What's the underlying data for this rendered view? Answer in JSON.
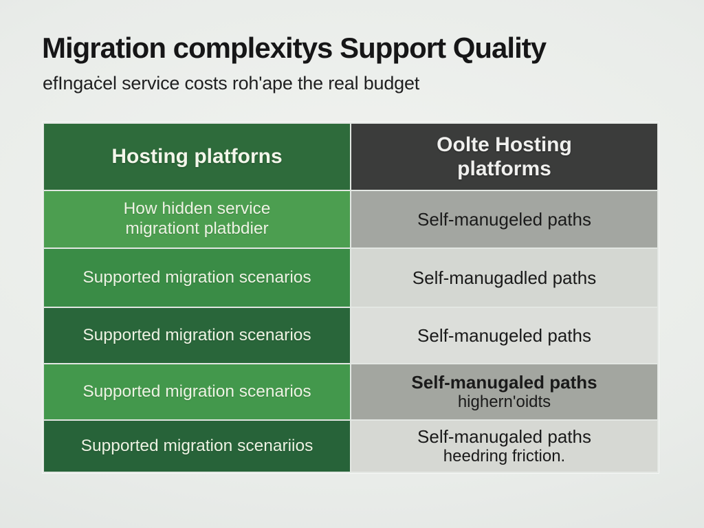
{
  "page": {
    "title": "Migration complexitys Support Quality",
    "subtitle": "efIngaċel service costs roh'ape the real budget"
  },
  "table": {
    "columns": [
      {
        "header": "Hosting platforns",
        "header_bg": "#2e6b3b"
      },
      {
        "header": "Oolte Hosting platforms",
        "header_bg": "#3b3c3b"
      }
    ],
    "rows": [
      {
        "left": {
          "line1": "How hidden service",
          "line2": "migrationt platbdier",
          "bg": "#4c9e50"
        },
        "right": {
          "line1": "Self-manugeled paths",
          "line2": "",
          "bg": "#a3a6a1"
        }
      },
      {
        "left": {
          "line1": "Supported migration scenarios",
          "line2": "",
          "bg": "#3a8c46"
        },
        "right": {
          "line1": "Self-manugadled paths",
          "line2": "",
          "bg": "#d4d7d2"
        }
      },
      {
        "left": {
          "line1": "Supported migration scenarios",
          "line2": "",
          "bg": "#29663a"
        },
        "right": {
          "line1": "Self-manugeled paths",
          "line2": "",
          "bg": "#dcdeda"
        }
      },
      {
        "left": {
          "line1": "Supported migration scenarios",
          "line2": "",
          "bg": "#43984c"
        },
        "right": {
          "line1": "Self-manugaled paths",
          "line2": "highern'oidts",
          "bg": "#a3a6a0"
        }
      },
      {
        "left": {
          "line1": "Supported migration scenariios",
          "line2": "",
          "bg": "#276339"
        },
        "right": {
          "line1": "Self-manugaled paths",
          "line2": "heedring friction.",
          "bg": "#d6d8d3"
        }
      }
    ]
  },
  "colors": {
    "background": "#e9ece9",
    "title_text": "#161617",
    "green_text": "#edf3e3",
    "gray_text": "#1a1a1a",
    "grid_line": "#e3e7e3"
  }
}
